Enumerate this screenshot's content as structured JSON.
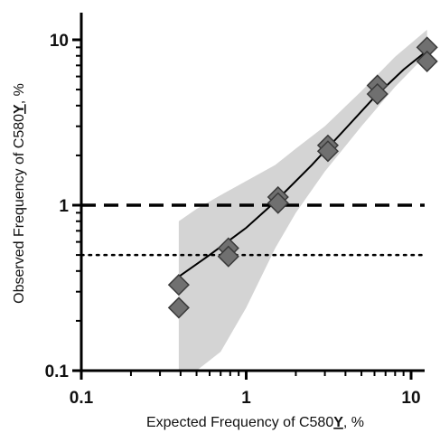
{
  "chart_data": {
    "type": "scatter",
    "title": "",
    "xlabel": "Expected Frequency of C580Y, %",
    "ylabel": "Observed Frequency of C580Y, %",
    "xlabel_parts": {
      "pre": "Expected Frequency of C580",
      "emph": "Y",
      "post": ", %"
    },
    "ylabel_parts": {
      "pre": "Observed Frequency of C580",
      "emph": "Y",
      "post": ", %"
    },
    "x_scale": "log",
    "y_scale": "log",
    "xlim": [
      0.1,
      15
    ],
    "ylim": [
      0.1,
      15
    ],
    "x_ticks": [
      {
        "value": 0.1,
        "label": "0.1"
      },
      {
        "value": 1,
        "label": "1"
      },
      {
        "value": 10,
        "label": "10"
      }
    ],
    "y_ticks": [
      {
        "value": 0.1,
        "label": "0.1"
      },
      {
        "value": 1,
        "label": "1"
      },
      {
        "value": 10,
        "label": "10"
      }
    ],
    "grid": false,
    "legend": "none",
    "points": [
      {
        "x": 0.39,
        "y": 0.33
      },
      {
        "x": 0.39,
        "y": 0.24
      },
      {
        "x": 0.78,
        "y": 0.55
      },
      {
        "x": 0.78,
        "y": 0.49
      },
      {
        "x": 1.56,
        "y": 1.12
      },
      {
        "x": 1.56,
        "y": 1.03
      },
      {
        "x": 3.13,
        "y": 2.3
      },
      {
        "x": 3.13,
        "y": 2.12
      },
      {
        "x": 6.25,
        "y": 5.3
      },
      {
        "x": 6.25,
        "y": 4.7
      },
      {
        "x": 12.5,
        "y": 9.0
      },
      {
        "x": 12.5,
        "y": 7.4
      }
    ],
    "fit_line": {
      "x": [
        0.39,
        0.6,
        1.0,
        1.5,
        2.5,
        4.0,
        6.0,
        9.0,
        12.5
      ],
      "y": [
        0.37,
        0.5,
        0.73,
        1.05,
        1.75,
        2.9,
        4.5,
        6.6,
        8.6
      ]
    },
    "confidence_band": {
      "x": [
        0.39,
        0.5,
        0.7,
        1.0,
        1.5,
        2.0,
        3.0,
        5.0,
        8.0,
        12.5
      ],
      "lower": [
        0.09,
        0.09,
        0.13,
        0.24,
        0.55,
        0.9,
        1.6,
        3.0,
        5.2,
        8.2
      ],
      "upper": [
        0.8,
        0.95,
        1.15,
        1.4,
        1.75,
        2.2,
        3.0,
        4.9,
        7.9,
        11.5
      ]
    },
    "reference_lines": [
      {
        "y": 1.0,
        "style": "dashed"
      },
      {
        "y": 0.5,
        "style": "dotted"
      }
    ],
    "colors": {
      "marker_fill": "#707070",
      "marker_stroke": "#3a3a3a",
      "band": "#d4d4d4",
      "line": "#000000"
    }
  }
}
